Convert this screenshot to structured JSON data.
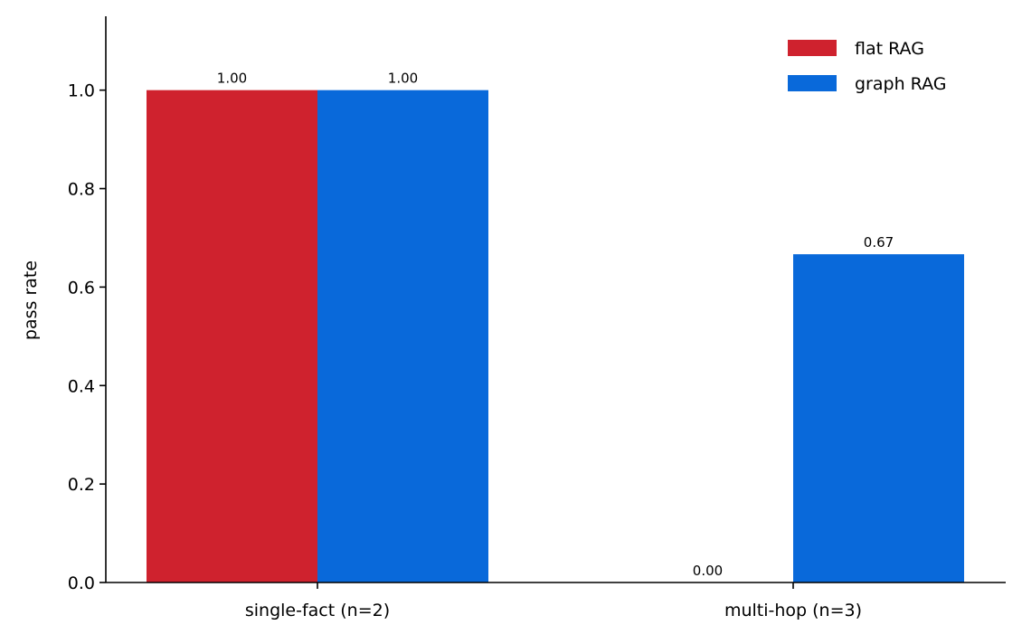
{
  "chart_data": {
    "type": "bar",
    "categories": [
      "single-fact (n=2)",
      "multi-hop (n=3)"
    ],
    "series": [
      {
        "name": "flat RAG",
        "values": [
          1.0,
          0.0
        ],
        "labels": [
          "1.00",
          "0.00"
        ],
        "color": "#cf222e"
      },
      {
        "name": "graph RAG",
        "values": [
          1.0,
          0.6667
        ],
        "labels": [
          "1.00",
          "0.67"
        ],
        "color": "#0969da"
      }
    ],
    "xlabel": "",
    "ylabel": "pass rate",
    "ylim": [
      0,
      1.15
    ],
    "yticks": [
      "0.0",
      "0.2",
      "0.4",
      "0.6",
      "0.8",
      "1.0"
    ],
    "grid": false,
    "legend_position": "top-right"
  }
}
